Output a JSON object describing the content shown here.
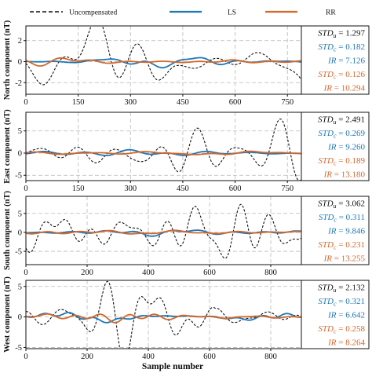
{
  "colors": {
    "uncompensated": "#111111",
    "ls": "#1f77b4",
    "rr": "#d4672a",
    "grid": "#b8b8b8"
  },
  "legend": {
    "uncompensated": "Uncompensated",
    "ls": "LS",
    "rr": "RR"
  },
  "x_axis_label": "Sample number",
  "chart_data": [
    {
      "type": "line",
      "ylabel": "North component (nT)",
      "xlim": [
        0,
        790
      ],
      "ylim": [
        -3.1,
        3.4
      ],
      "xticks": [
        0,
        150,
        300,
        450,
        600,
        750
      ],
      "yticks": [
        -2,
        0,
        2
      ],
      "grid": true,
      "series": [
        {
          "name": "Uncompensated",
          "style": "dashed",
          "seed": 11,
          "amplitude": 1.297
        },
        {
          "name": "LS",
          "style": "solid",
          "seed": 23,
          "amplitude": 0.182
        },
        {
          "name": "RR",
          "style": "solid",
          "seed": 37,
          "amplitude": 0.126
        }
      ],
      "stats": [
        {
          "label": "STD",
          "sub": "u",
          "value": "1.297",
          "color": "#111111"
        },
        {
          "label": "STD",
          "sub": "c",
          "value": "0.182",
          "color": "#1f77b4"
        },
        {
          "label": "IR",
          "sub": "",
          "value": "7.126",
          "color": "#1f77b4"
        },
        {
          "label": "STD",
          "sub": "c",
          "value": "0.126",
          "color": "#d4672a"
        },
        {
          "label": "IR",
          "sub": "",
          "value": "10.294",
          "color": "#d4672a"
        }
      ]
    },
    {
      "type": "line",
      "ylabel": "East component (nT)",
      "xlim": [
        0,
        790
      ],
      "ylim": [
        -6.2,
        9.2
      ],
      "xticks": [
        0,
        150,
        300,
        450,
        600,
        750
      ],
      "yticks": [
        -5,
        0,
        5
      ],
      "grid": true,
      "series": [
        {
          "name": "Uncompensated",
          "style": "dashed",
          "seed": 41,
          "amplitude": 2.491
        },
        {
          "name": "LS",
          "style": "solid",
          "seed": 53,
          "amplitude": 0.269
        },
        {
          "name": "RR",
          "style": "solid",
          "seed": 67,
          "amplitude": 0.189
        }
      ],
      "stats": [
        {
          "label": "STD",
          "sub": "u",
          "value": "2.491",
          "color": "#111111"
        },
        {
          "label": "STD",
          "sub": "c",
          "value": "0.269",
          "color": "#1f77b4"
        },
        {
          "label": "IR",
          "sub": "",
          "value": "9.260",
          "color": "#1f77b4"
        },
        {
          "label": "STD",
          "sub": "c",
          "value": "0.189",
          "color": "#d4672a"
        },
        {
          "label": "IR",
          "sub": "",
          "value": "13.180",
          "color": "#d4672a"
        }
      ]
    },
    {
      "type": "line",
      "ylabel": "South component (nT)",
      "xlim": [
        0,
        900
      ],
      "ylim": [
        -8.5,
        9.5
      ],
      "xticks": [
        0,
        200,
        400,
        600,
        800
      ],
      "yticks": [
        -5,
        0,
        5
      ],
      "grid": true,
      "series": [
        {
          "name": "Uncompensated",
          "style": "dashed",
          "seed": 71,
          "amplitude": 3.062
        },
        {
          "name": "LS",
          "style": "solid",
          "seed": 83,
          "amplitude": 0.311
        },
        {
          "name": "RR",
          "style": "solid",
          "seed": 97,
          "amplitude": 0.231
        }
      ],
      "stats": [
        {
          "label": "STD",
          "sub": "u",
          "value": "3.062",
          "color": "#111111"
        },
        {
          "label": "STD",
          "sub": "c",
          "value": "0.311",
          "color": "#1f77b4"
        },
        {
          "label": "IR",
          "sub": "",
          "value": "9.846",
          "color": "#1f77b4"
        },
        {
          "label": "STD",
          "sub": "c",
          "value": "0.231",
          "color": "#d4672a"
        },
        {
          "label": "IR",
          "sub": "",
          "value": "13.255",
          "color": "#d4672a"
        }
      ]
    },
    {
      "type": "line",
      "ylabel": "West component (nT)",
      "xlim": [
        0,
        900
      ],
      "ylim": [
        -5.2,
        6.0
      ],
      "xticks": [
        0,
        200,
        400,
        600,
        800
      ],
      "yticks": [
        -5,
        0,
        5
      ],
      "grid": true,
      "series": [
        {
          "name": "Uncompensated",
          "style": "dashed",
          "seed": 101,
          "amplitude": 2.132
        },
        {
          "name": "LS",
          "style": "solid",
          "seed": 113,
          "amplitude": 0.321
        },
        {
          "name": "RR",
          "style": "solid",
          "seed": 127,
          "amplitude": 0.258
        }
      ],
      "stats": [
        {
          "label": "STD",
          "sub": "u",
          "value": "2.132",
          "color": "#111111"
        },
        {
          "label": "STD",
          "sub": "c",
          "value": "0.321",
          "color": "#1f77b4"
        },
        {
          "label": "IR",
          "sub": "",
          "value": "6.642",
          "color": "#1f77b4"
        },
        {
          "label": "STD",
          "sub": "c",
          "value": "0.258",
          "color": "#d4672a"
        },
        {
          "label": "IR",
          "sub": "",
          "value": "8.264",
          "color": "#d4672a"
        }
      ]
    }
  ]
}
